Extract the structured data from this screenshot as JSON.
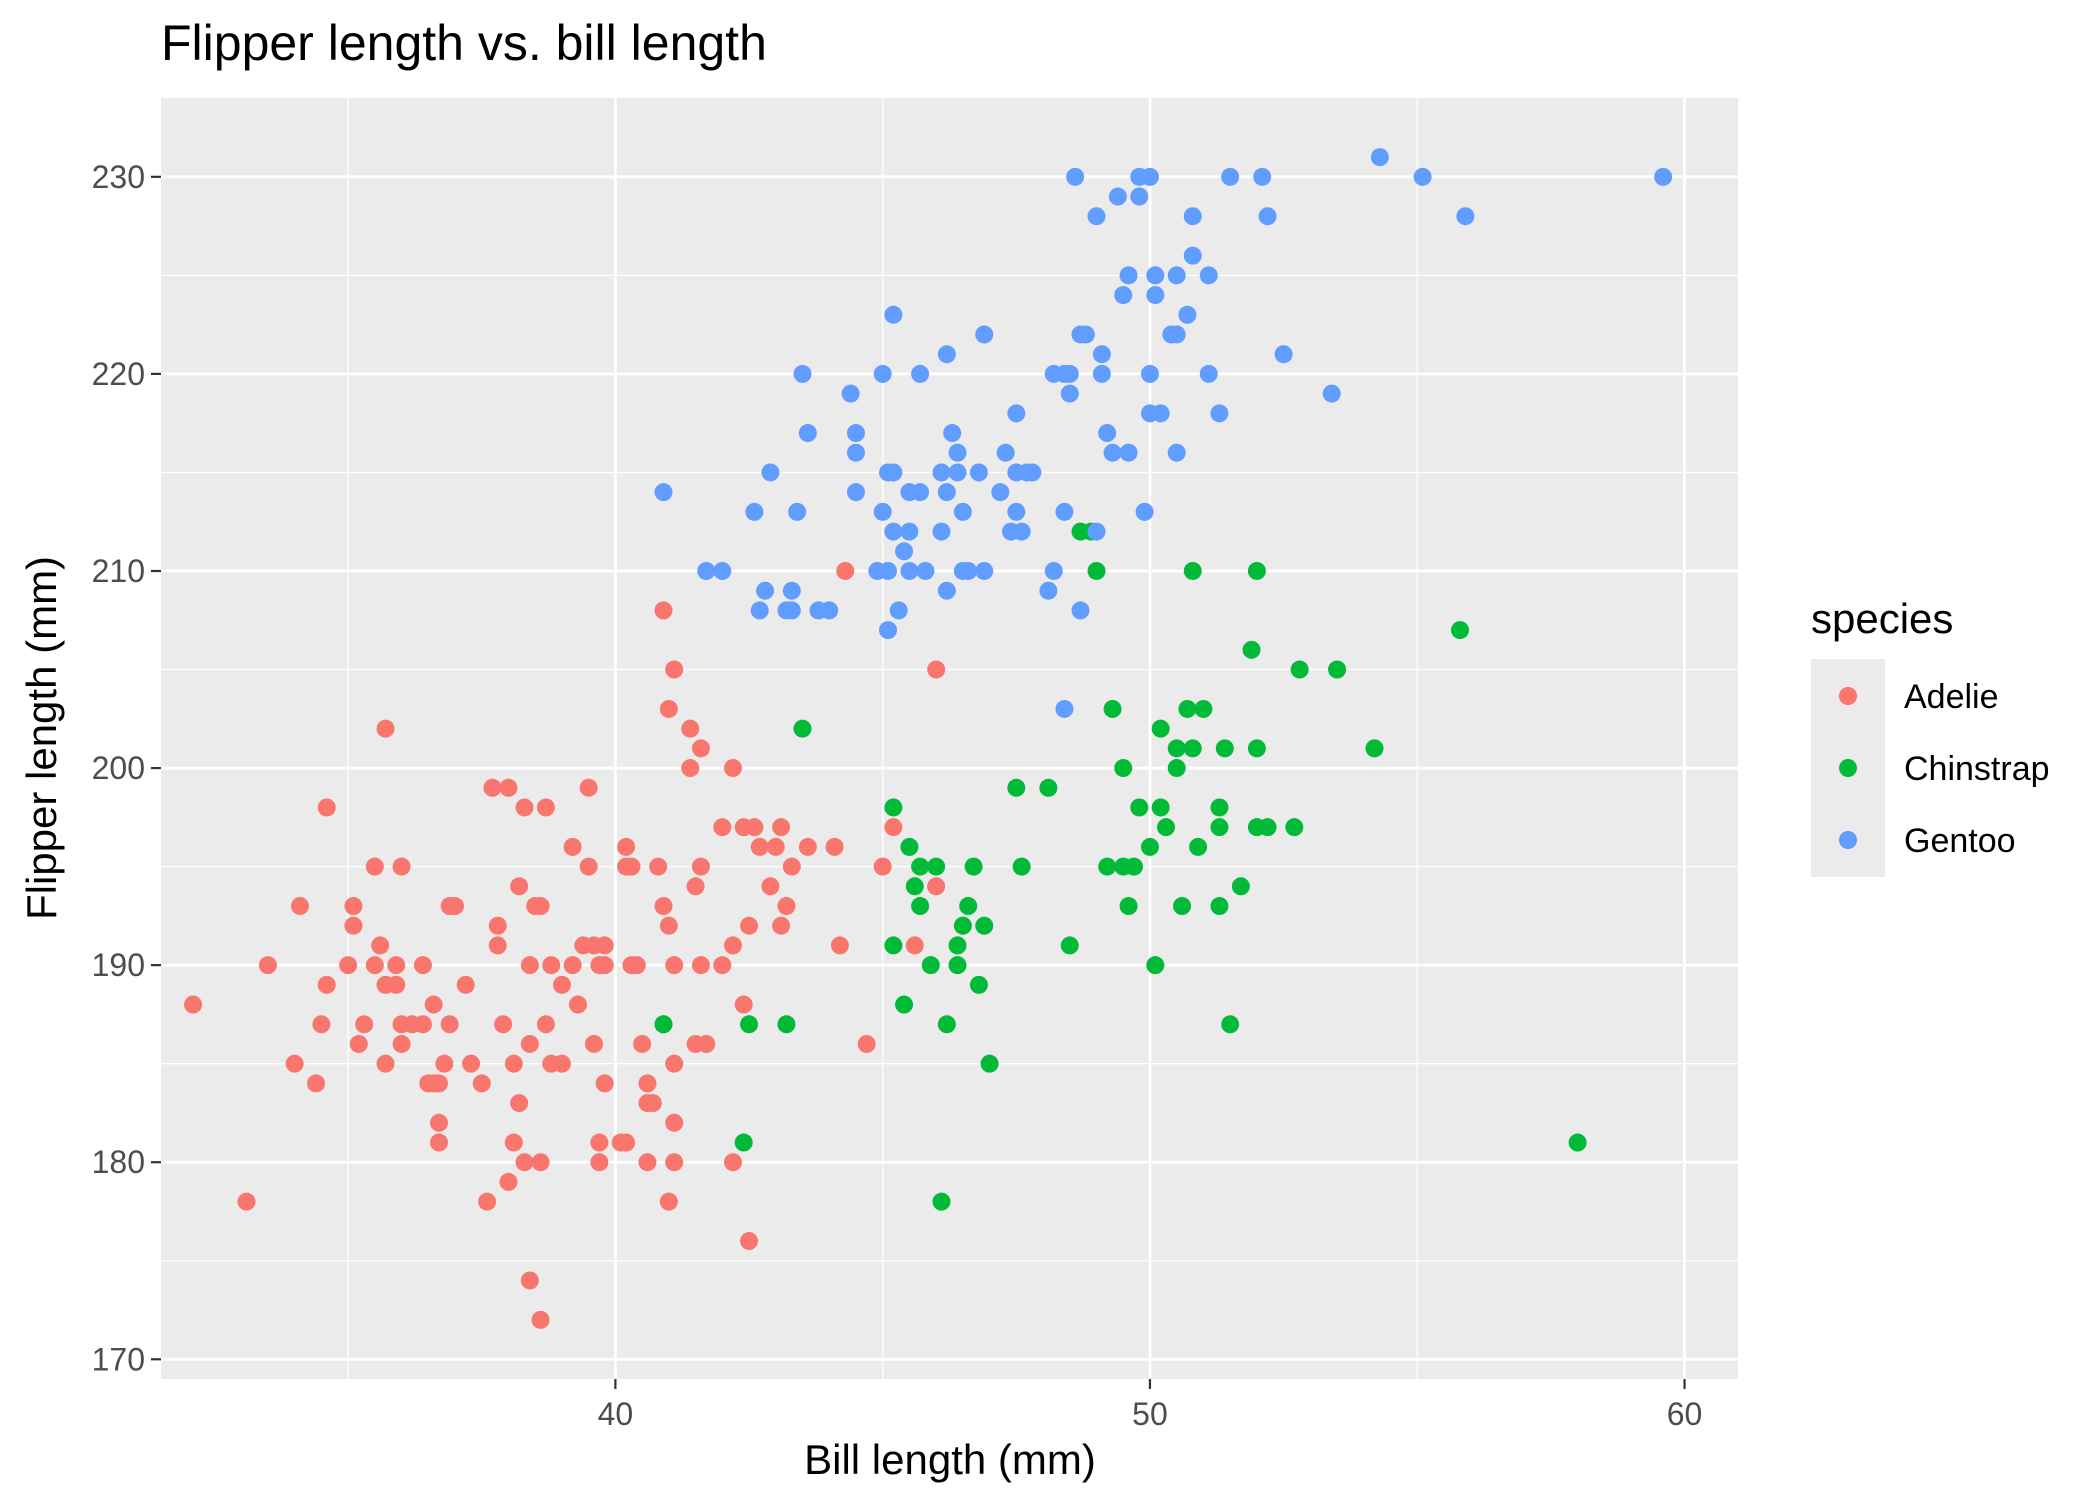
{
  "chart_data": {
    "type": "scatter",
    "title": "Flipper length vs. bill length",
    "xlabel": "Bill length (mm)",
    "ylabel": "Flipper length (mm)",
    "xlim": [
      31.5,
      61
    ],
    "ylim": [
      169,
      234
    ],
    "x_ticks": [
      40,
      50,
      60
    ],
    "y_ticks": [
      170,
      180,
      190,
      200,
      210,
      220,
      230
    ],
    "x_minor_ticks": [
      35,
      45,
      55
    ],
    "y_minor_ticks": [
      175,
      185,
      195,
      205,
      215,
      225
    ],
    "grid": true,
    "panel_background": "#EBEBEB",
    "legend": {
      "title": "species",
      "position": "right",
      "entries": [
        "Adelie",
        "Chinstrap",
        "Gentoo"
      ],
      "background": "#EBEBEB"
    },
    "series": [
      {
        "name": "Adelie",
        "color": "#F8766D",
        "points": [
          [
            32.1,
            188
          ],
          [
            33.1,
            178
          ],
          [
            33.5,
            190
          ],
          [
            34.0,
            185
          ],
          [
            34.1,
            193
          ],
          [
            34.4,
            184
          ],
          [
            34.5,
            187
          ],
          [
            34.6,
            198
          ],
          [
            34.6,
            189
          ],
          [
            35.0,
            190
          ],
          [
            35.1,
            192
          ],
          [
            35.1,
            193
          ],
          [
            35.2,
            186
          ],
          [
            35.3,
            187
          ],
          [
            35.5,
            195
          ],
          [
            35.5,
            190
          ],
          [
            35.6,
            191
          ],
          [
            35.7,
            185
          ],
          [
            35.7,
            202
          ],
          [
            35.7,
            189
          ],
          [
            35.9,
            189
          ],
          [
            35.9,
            190
          ],
          [
            36.0,
            195
          ],
          [
            36.0,
            186
          ],
          [
            36.0,
            187
          ],
          [
            36.2,
            187
          ],
          [
            36.4,
            187
          ],
          [
            36.4,
            190
          ],
          [
            36.5,
            184
          ],
          [
            36.6,
            184
          ],
          [
            36.7,
            181
          ],
          [
            36.7,
            182
          ],
          [
            36.7,
            184
          ],
          [
            36.8,
            185
          ],
          [
            36.9,
            187
          ],
          [
            36.9,
            193
          ],
          [
            37.0,
            193
          ],
          [
            37.2,
            189
          ],
          [
            37.3,
            185
          ],
          [
            37.5,
            184
          ],
          [
            37.6,
            178
          ],
          [
            37.7,
            199
          ],
          [
            37.8,
            191
          ],
          [
            37.8,
            192
          ],
          [
            38.0,
            199
          ],
          [
            38.0,
            179
          ],
          [
            38.1,
            181
          ],
          [
            38.1,
            185
          ],
          [
            38.2,
            183
          ],
          [
            38.2,
            194
          ],
          [
            38.3,
            198
          ],
          [
            38.3,
            180
          ],
          [
            38.4,
            186
          ],
          [
            38.4,
            174
          ],
          [
            38.4,
            190
          ],
          [
            38.5,
            193
          ],
          [
            38.6,
            193
          ],
          [
            38.6,
            180
          ],
          [
            38.6,
            172
          ],
          [
            38.7,
            198
          ],
          [
            38.7,
            187
          ],
          [
            38.8,
            190
          ],
          [
            38.8,
            185
          ],
          [
            39.0,
            189
          ],
          [
            39.0,
            185
          ],
          [
            39.2,
            190
          ],
          [
            39.3,
            188
          ],
          [
            39.4,
            191
          ],
          [
            39.5,
            199
          ],
          [
            39.5,
            195
          ],
          [
            39.6,
            191
          ],
          [
            39.6,
            186
          ],
          [
            39.7,
            190
          ],
          [
            39.7,
            181
          ],
          [
            39.7,
            180
          ],
          [
            39.8,
            190
          ],
          [
            39.8,
            191
          ],
          [
            39.8,
            184
          ],
          [
            40.1,
            181
          ],
          [
            40.2,
            181
          ],
          [
            40.2,
            196
          ],
          [
            40.3,
            195
          ],
          [
            40.3,
            190
          ],
          [
            40.4,
            190
          ],
          [
            40.5,
            186
          ],
          [
            40.6,
            184
          ],
          [
            40.6,
            183
          ],
          [
            40.8,
            195
          ],
          [
            40.9,
            187
          ],
          [
            40.9,
            193
          ],
          [
            41.0,
            192
          ],
          [
            41.0,
            178
          ],
          [
            41.1,
            190
          ],
          [
            41.1,
            185
          ],
          [
            41.4,
            200
          ],
          [
            41.5,
            186
          ],
          [
            41.6,
            190
          ],
          [
            41.7,
            186
          ],
          [
            42.0,
            190
          ],
          [
            42.2,
            200
          ],
          [
            42.4,
            188
          ],
          [
            42.5,
            176
          ],
          [
            42.7,
            196
          ],
          [
            42.9,
            194
          ],
          [
            43.2,
            193
          ],
          [
            43.3,
            195
          ],
          [
            43.6,
            196
          ],
          [
            44.2,
            191
          ],
          [
            44.7,
            186
          ],
          [
            45.0,
            195
          ],
          [
            45.2,
            197
          ],
          [
            45.6,
            191
          ],
          [
            46.0,
            194
          ],
          [
            46.0,
            205
          ],
          [
            37.9,
            187
          ],
          [
            36.6,
            188
          ],
          [
            39.2,
            196
          ],
          [
            40.2,
            195
          ],
          [
            44.3,
            210
          ],
          [
            40.9,
            208
          ],
          [
            41.1,
            205
          ],
          [
            41.4,
            202
          ],
          [
            41.0,
            203
          ],
          [
            41.6,
            201
          ],
          [
            42.0,
            197
          ],
          [
            42.4,
            197
          ],
          [
            42.6,
            197
          ],
          [
            43.0,
            196
          ],
          [
            43.1,
            197
          ],
          [
            44.1,
            196
          ],
          [
            41.1,
            180
          ],
          [
            40.6,
            180
          ],
          [
            42.2,
            180
          ],
          [
            43.1,
            192
          ],
          [
            41.1,
            182
          ],
          [
            40.7,
            183
          ],
          [
            42.2,
            191
          ],
          [
            41.6,
            195
          ],
          [
            41.5,
            194
          ],
          [
            42.5,
            192
          ]
        ]
      },
      {
        "name": "Chinstrap",
        "color": "#00BA38",
        "points": [
          [
            40.9,
            187
          ],
          [
            42.4,
            181
          ],
          [
            42.5,
            187
          ],
          [
            43.2,
            187
          ],
          [
            43.5,
            202
          ],
          [
            45.2,
            198
          ],
          [
            45.2,
            191
          ],
          [
            45.4,
            188
          ],
          [
            45.5,
            196
          ],
          [
            45.6,
            194
          ],
          [
            45.7,
            195
          ],
          [
            45.7,
            193
          ],
          [
            45.9,
            190
          ],
          [
            46.0,
            195
          ],
          [
            46.1,
            178
          ],
          [
            46.2,
            187
          ],
          [
            46.4,
            191
          ],
          [
            46.4,
            190
          ],
          [
            46.5,
            192
          ],
          [
            46.6,
            193
          ],
          [
            46.7,
            195
          ],
          [
            46.8,
            189
          ],
          [
            46.9,
            192
          ],
          [
            47.0,
            185
          ],
          [
            47.5,
            199
          ],
          [
            47.6,
            195
          ],
          [
            48.1,
            199
          ],
          [
            48.5,
            191
          ],
          [
            48.7,
            212
          ],
          [
            48.9,
            212
          ],
          [
            49.0,
            210
          ],
          [
            49.2,
            195
          ],
          [
            49.3,
            203
          ],
          [
            49.5,
            200
          ],
          [
            49.6,
            193
          ],
          [
            49.7,
            195
          ],
          [
            49.8,
            198
          ],
          [
            50.0,
            196
          ],
          [
            50.1,
            190
          ],
          [
            50.2,
            198
          ],
          [
            50.2,
            202
          ],
          [
            50.3,
            197
          ],
          [
            50.5,
            201
          ],
          [
            50.5,
            200
          ],
          [
            50.7,
            203
          ],
          [
            50.8,
            210
          ],
          [
            50.8,
            201
          ],
          [
            50.9,
            196
          ],
          [
            51.0,
            203
          ],
          [
            51.3,
            193
          ],
          [
            51.3,
            197
          ],
          [
            51.3,
            198
          ],
          [
            51.4,
            201
          ],
          [
            51.5,
            187
          ],
          [
            51.7,
            194
          ],
          [
            51.9,
            206
          ],
          [
            52.0,
            197
          ],
          [
            52.0,
            210
          ],
          [
            52.0,
            201
          ],
          [
            52.2,
            197
          ],
          [
            52.7,
            197
          ],
          [
            52.8,
            205
          ],
          [
            53.5,
            205
          ],
          [
            54.2,
            201
          ],
          [
            55.8,
            207
          ],
          [
            58.0,
            181
          ],
          [
            49.5,
            195
          ],
          [
            50.6,
            193
          ]
        ]
      },
      {
        "name": "Gentoo",
        "color": "#619CFF",
        "points": [
          [
            40.9,
            214
          ],
          [
            41.7,
            210
          ],
          [
            42.0,
            210
          ],
          [
            42.6,
            213
          ],
          [
            42.7,
            208
          ],
          [
            42.8,
            209
          ],
          [
            42.9,
            215
          ],
          [
            43.2,
            208
          ],
          [
            43.3,
            209
          ],
          [
            43.3,
            208
          ],
          [
            43.4,
            213
          ],
          [
            43.5,
            220
          ],
          [
            43.6,
            217
          ],
          [
            43.8,
            208
          ],
          [
            44.0,
            208
          ],
          [
            44.4,
            219
          ],
          [
            44.5,
            217
          ],
          [
            44.5,
            216
          ],
          [
            44.5,
            214
          ],
          [
            45.0,
            213
          ],
          [
            45.0,
            220
          ],
          [
            45.1,
            215
          ],
          [
            45.1,
            210
          ],
          [
            45.2,
            215
          ],
          [
            45.2,
            223
          ],
          [
            45.2,
            212
          ],
          [
            45.3,
            208
          ],
          [
            45.4,
            211
          ],
          [
            45.5,
            210
          ],
          [
            45.5,
            212
          ],
          [
            45.5,
            214
          ],
          [
            45.7,
            214
          ],
          [
            45.7,
            220
          ],
          [
            45.8,
            210
          ],
          [
            46.1,
            215
          ],
          [
            46.1,
            212
          ],
          [
            46.2,
            209
          ],
          [
            46.2,
            214
          ],
          [
            46.2,
            221
          ],
          [
            46.3,
            217
          ],
          [
            46.4,
            216
          ],
          [
            46.5,
            213
          ],
          [
            46.5,
            210
          ],
          [
            46.6,
            210
          ],
          [
            46.8,
            215
          ],
          [
            46.9,
            222
          ],
          [
            47.2,
            214
          ],
          [
            47.3,
            216
          ],
          [
            47.4,
            212
          ],
          [
            47.5,
            215
          ],
          [
            47.5,
            218
          ],
          [
            47.6,
            212
          ],
          [
            47.7,
            215
          ],
          [
            47.8,
            215
          ],
          [
            48.1,
            209
          ],
          [
            48.2,
            210
          ],
          [
            48.4,
            213
          ],
          [
            48.4,
            220
          ],
          [
            48.5,
            219
          ],
          [
            48.5,
            220
          ],
          [
            48.6,
            230
          ],
          [
            48.7,
            208
          ],
          [
            48.7,
            222
          ],
          [
            48.8,
            222
          ],
          [
            49.0,
            212
          ],
          [
            49.1,
            220
          ],
          [
            49.1,
            221
          ],
          [
            49.2,
            217
          ],
          [
            49.3,
            216
          ],
          [
            49.4,
            229
          ],
          [
            49.5,
            224
          ],
          [
            49.6,
            216
          ],
          [
            49.6,
            225
          ],
          [
            49.8,
            230
          ],
          [
            49.8,
            229
          ],
          [
            49.9,
            213
          ],
          [
            50.0,
            218
          ],
          [
            50.0,
            230
          ],
          [
            50.1,
            224
          ],
          [
            50.1,
            225
          ],
          [
            50.2,
            218
          ],
          [
            50.4,
            222
          ],
          [
            50.5,
            216
          ],
          [
            50.5,
            222
          ],
          [
            50.5,
            225
          ],
          [
            50.7,
            223
          ],
          [
            50.8,
            226
          ],
          [
            50.8,
            228
          ],
          [
            51.1,
            220
          ],
          [
            51.1,
            225
          ],
          [
            51.3,
            218
          ],
          [
            51.5,
            230
          ],
          [
            52.1,
            230
          ],
          [
            52.2,
            228
          ],
          [
            52.5,
            221
          ],
          [
            53.4,
            219
          ],
          [
            54.3,
            231
          ],
          [
            55.1,
            230
          ],
          [
            55.9,
            228
          ],
          [
            59.6,
            230
          ],
          [
            48.4,
            203
          ],
          [
            46.9,
            210
          ],
          [
            44.9,
            210
          ],
          [
            45.1,
            207
          ],
          [
            47.5,
            213
          ],
          [
            48.2,
            220
          ],
          [
            49.0,
            228
          ],
          [
            50.0,
            220
          ],
          [
            46.4,
            215
          ]
        ]
      }
    ]
  }
}
